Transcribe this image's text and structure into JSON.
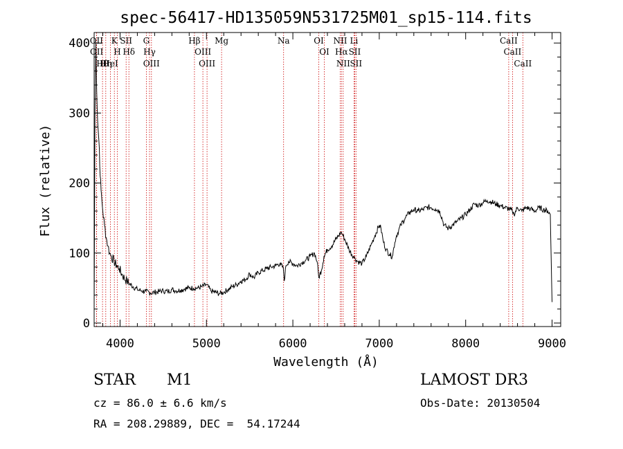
{
  "chart_data": {
    "type": "line",
    "title": "spec-56417-HD135059N531725M01_sp15-114.fits",
    "xlabel": "Wavelength (Å)",
    "ylabel": "Flux (relative)",
    "xlim": [
      3700,
      9100
    ],
    "ylim": [
      -5,
      415
    ],
    "xticks": [
      4000,
      5000,
      6000,
      7000,
      8000,
      9000
    ],
    "yticks": [
      0,
      100,
      200,
      300,
      400
    ],
    "series": [
      {
        "name": "flux",
        "x": [
          3700,
          3710,
          3720,
          3730,
          3740,
          3750,
          3760,
          3770,
          3780,
          3790,
          3800,
          3820,
          3840,
          3860,
          3880,
          3900,
          3930,
          3960,
          3990,
          4020,
          4050,
          4080,
          4110,
          4150,
          4200,
          4250,
          4300,
          4350,
          4400,
          4450,
          4500,
          4550,
          4600,
          4650,
          4700,
          4750,
          4800,
          4850,
          4900,
          4950,
          5000,
          5050,
          5100,
          5150,
          5200,
          5250,
          5300,
          5350,
          5400,
          5450,
          5500,
          5550,
          5600,
          5650,
          5700,
          5750,
          5800,
          5850,
          5890,
          5900,
          5920,
          5950,
          6000,
          6050,
          6100,
          6150,
          6200,
          6250,
          6280,
          6300,
          6330,
          6360,
          6400,
          6450,
          6500,
          6530,
          6560,
          6580,
          6600,
          6650,
          6700,
          6720,
          6750,
          6800,
          6850,
          6900,
          6950,
          7000,
          7020,
          7050,
          7080,
          7120,
          7150,
          7180,
          7200,
          7250,
          7300,
          7350,
          7400,
          7450,
          7500,
          7550,
          7600,
          7650,
          7700,
          7750,
          7800,
          7850,
          7900,
          7950,
          8000,
          8050,
          8100,
          8150,
          8200,
          8250,
          8300,
          8350,
          8400,
          8450,
          8500,
          8540,
          8560,
          8600,
          8650,
          8700,
          8750,
          8800,
          8850,
          8900,
          8950,
          8980,
          8990,
          9000
        ],
        "values": [
          20,
          300,
          400,
          330,
          290,
          270,
          250,
          210,
          190,
          175,
          160,
          140,
          122,
          110,
          100,
          95,
          88,
          82,
          78,
          70,
          64,
          60,
          56,
          52,
          48,
          46,
          45,
          43,
          44,
          45,
          46,
          45,
          48,
          46,
          47,
          49,
          50,
          50,
          50,
          52,
          55,
          46,
          44,
          42,
          44,
          48,
          52,
          55,
          60,
          62,
          70,
          65,
          72,
          75,
          78,
          80,
          82,
          85,
          78,
          60,
          82,
          88,
          85,
          82,
          86,
          90,
          95,
          100,
          88,
          65,
          75,
          95,
          105,
          110,
          120,
          125,
          130,
          125,
          120,
          105,
          95,
          92,
          88,
          85,
          95,
          110,
          125,
          140,
          135,
          115,
          105,
          98,
          95,
          115,
          125,
          140,
          150,
          158,
          162,
          160,
          162,
          165,
          165,
          163,
          160,
          140,
          135,
          140,
          145,
          150,
          155,
          162,
          170,
          168,
          172,
          175,
          173,
          170,
          168,
          165,
          163,
          160,
          155,
          165,
          160,
          165,
          163,
          160,
          165,
          162,
          160,
          155,
          90,
          30
        ]
      }
    ],
    "lines": [
      {
        "label": "Hθ",
        "wl": 3797
      },
      {
        "label": "OII",
        "wl": 3727
      },
      {
        "label": "OII",
        "wl": 3729
      },
      {
        "label": "Hη",
        "wl": 3835
      },
      {
        "label": "HeI",
        "wl": 3889
      },
      {
        "label": "K",
        "wl": 3934
      },
      {
        "label": "SII",
        "wl": 4070
      },
      {
        "label": "H",
        "wl": 3968
      },
      {
        "label": "Hδ",
        "wl": 4102
      },
      {
        "label": "OIII",
        "wl": 4363
      },
      {
        "label": "Hγ",
        "wl": 4341
      },
      {
        "label": "G",
        "wl": 4304
      },
      {
        "label": "OIII",
        "wl": 5007
      },
      {
        "label": "OIII",
        "wl": 4959
      },
      {
        "label": "Hβ",
        "wl": 4861
      },
      {
        "label": "Mg",
        "wl": 5175
      },
      {
        "label": "Na",
        "wl": 5893
      },
      {
        "label": "OI",
        "wl": 6300
      },
      {
        "label": "OI",
        "wl": 6364
      },
      {
        "label": "Hα",
        "wl": 6563
      },
      {
        "label": "NII",
        "wl": 6548
      },
      {
        "label": "NII",
        "wl": 6583
      },
      {
        "label": "SII",
        "wl": 6716
      },
      {
        "label": "Li",
        "wl": 6708
      },
      {
        "label": "SII",
        "wl": 6731
      },
      {
        "label": "CaII",
        "wl": 8542
      },
      {
        "label": "CaII",
        "wl": 8498
      },
      {
        "label": "CaII",
        "wl": 8662
      }
    ]
  },
  "info": {
    "object_class": "STAR",
    "subclass": "M1",
    "cz": "cz = 86.0 ± 6.6 km/s",
    "radec": "RA = 208.29889, DEC =  54.17244",
    "survey": "LAMOST DR3",
    "obs_date": "Obs-Date: 20130504"
  },
  "colors": {
    "axis": "#000000",
    "spectrum": "#000000",
    "line_marker": "#cc0000"
  }
}
